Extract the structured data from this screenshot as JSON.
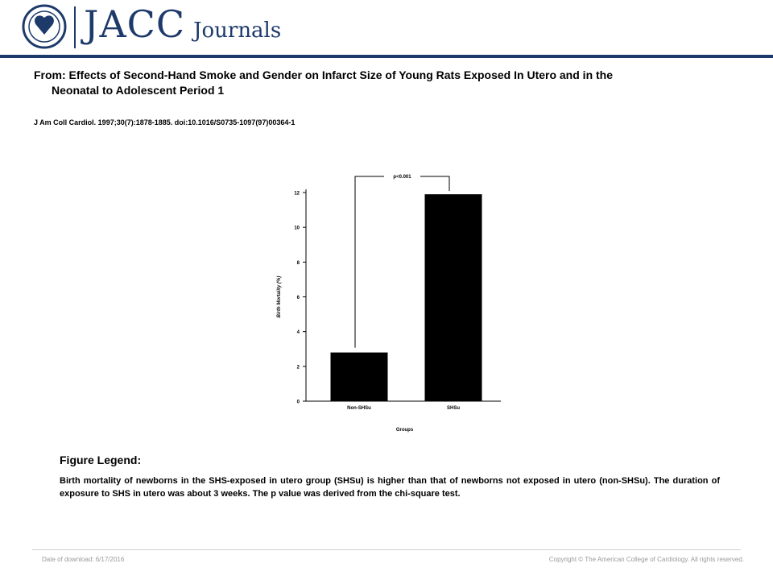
{
  "header": {
    "brand_main": "JACC",
    "brand_sub": "Journals",
    "logo_icon": "acc-seal-icon",
    "brand_color": "#1e3a6b"
  },
  "article": {
    "from_line1": "From: Effects of Second-Hand Smoke and Gender on Infarct Size of Young Rats Exposed In Utero and in the",
    "from_line2": "Neonatal to Adolescent Period 1",
    "citation": "J Am Coll Cardiol. 1997;30(7):1878-1885. doi:10.1016/S0735-1097(97)00364-1"
  },
  "chart_data": {
    "type": "bar",
    "categories": [
      "Non-SHSu",
      "SHSu"
    ],
    "values": [
      2.8,
      11.9
    ],
    "xlabel": "Groups",
    "ylabel": "Birth Mortality (%)",
    "ylim": [
      0,
      12
    ],
    "yticks": [
      "0",
      "2",
      "4",
      "6",
      "8",
      "10",
      "12"
    ],
    "annotation": "p<0.001",
    "bar_color": "#000000",
    "grid": false
  },
  "legend": {
    "title": "Figure Legend:",
    "text": "Birth mortality of newborns in the SHS-exposed in utero group (SHSu) is higher than that of newborns not exposed in utero (non-SHSu). The duration of exposure to SHS in utero was about 3 weeks. The p value was derived from the chi-square test."
  },
  "footer": {
    "date": "Date of download: 6/17/2016",
    "copyright": "Copyright © The American College of Cardiology. All rights reserved."
  }
}
